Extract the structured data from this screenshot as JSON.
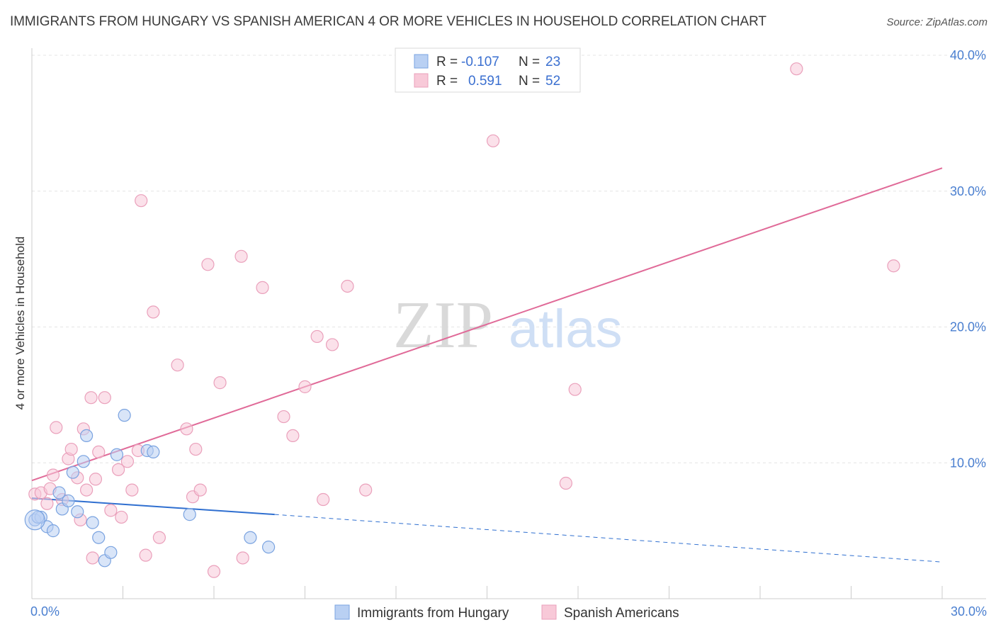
{
  "chart_data": {
    "type": "scatter",
    "title": "IMMIGRANTS FROM HUNGARY VS SPANISH AMERICAN 4 OR MORE VEHICLES IN HOUSEHOLD CORRELATION CHART",
    "source": "Source: ZipAtlas.com",
    "ylabel": "4 or more Vehicles in Household",
    "xlim": [
      0,
      30
    ],
    "ylim": [
      0,
      40
    ],
    "y_ticks": [
      "10.0%",
      "20.0%",
      "30.0%",
      "40.0%"
    ],
    "y_tick_values": [
      10,
      20,
      30,
      40
    ],
    "x_tick_labels": [
      "0.0%",
      "30.0%"
    ],
    "watermark": {
      "zip": "ZIP",
      "atlas": "atlas"
    },
    "legend": {
      "rows": [
        {
          "r_label": "R =",
          "r_value": "-0.107",
          "n_label": "N =",
          "n_value": "23"
        },
        {
          "r_label": "R =",
          "r_value": "0.591",
          "n_label": "N =",
          "n_value": "52"
        }
      ]
    },
    "series": [
      {
        "name": "Immigrants from Hungary",
        "color": "#7aa3e0",
        "fill": "#b9d0f3",
        "line_color": "#2f6fd0",
        "trend": {
          "x0": 0,
          "y0": 7.4,
          "x1": 8,
          "y1": 6.2,
          "dashed_to_x": 30,
          "dashed_to_y": 2.7
        },
        "points": [
          [
            0.1,
            5.8
          ],
          [
            0.3,
            6.0
          ],
          [
            0.5,
            5.3
          ],
          [
            0.7,
            5.0
          ],
          [
            0.9,
            7.8
          ],
          [
            1.0,
            6.6
          ],
          [
            1.2,
            7.2
          ],
          [
            1.35,
            9.3
          ],
          [
            1.5,
            6.4
          ],
          [
            1.7,
            10.1
          ],
          [
            1.8,
            12.0
          ],
          [
            2.0,
            5.6
          ],
          [
            2.2,
            4.5
          ],
          [
            2.4,
            2.8
          ],
          [
            2.6,
            3.4
          ],
          [
            2.8,
            10.6
          ],
          [
            3.05,
            13.5
          ],
          [
            3.8,
            10.9
          ],
          [
            4.0,
            10.8
          ],
          [
            5.2,
            6.2
          ],
          [
            7.2,
            4.5
          ],
          [
            7.8,
            3.8
          ],
          [
            0.2,
            6.0
          ]
        ]
      },
      {
        "name": "Spanish Americans",
        "color": "#eaa0bb",
        "fill": "#f8c9d8",
        "line_color": "#e06a98",
        "trend": {
          "x0": 0,
          "y0": 8.7,
          "x1": 30,
          "y1": 31.7
        },
        "points": [
          [
            0.1,
            7.7
          ],
          [
            0.3,
            7.8
          ],
          [
            0.5,
            7.0
          ],
          [
            0.6,
            8.1
          ],
          [
            0.7,
            9.1
          ],
          [
            0.8,
            12.6
          ],
          [
            1.0,
            7.3
          ],
          [
            1.2,
            10.3
          ],
          [
            1.3,
            11.0
          ],
          [
            1.5,
            8.9
          ],
          [
            1.6,
            5.8
          ],
          [
            1.7,
            12.5
          ],
          [
            1.8,
            8.0
          ],
          [
            1.95,
            14.8
          ],
          [
            2.1,
            8.8
          ],
          [
            2.2,
            10.8
          ],
          [
            2.4,
            14.8
          ],
          [
            2.6,
            6.5
          ],
          [
            2.85,
            9.5
          ],
          [
            2.95,
            6.0
          ],
          [
            3.15,
            10.1
          ],
          [
            3.3,
            8.0
          ],
          [
            3.5,
            10.9
          ],
          [
            3.6,
            29.3
          ],
          [
            4.0,
            21.1
          ],
          [
            4.2,
            4.5
          ],
          [
            4.8,
            17.2
          ],
          [
            5.1,
            12.5
          ],
          [
            5.3,
            7.5
          ],
          [
            5.4,
            11.0
          ],
          [
            5.55,
            8.0
          ],
          [
            5.8,
            24.6
          ],
          [
            6.0,
            2.0
          ],
          [
            6.2,
            15.9
          ],
          [
            6.9,
            25.2
          ],
          [
            7.6,
            22.9
          ],
          [
            8.3,
            13.4
          ],
          [
            8.6,
            12.0
          ],
          [
            9.0,
            15.6
          ],
          [
            9.4,
            19.3
          ],
          [
            9.6,
            7.3
          ],
          [
            9.9,
            18.7
          ],
          [
            10.4,
            23.0
          ],
          [
            11.0,
            8.0
          ],
          [
            15.2,
            33.7
          ],
          [
            17.6,
            8.5
          ],
          [
            17.9,
            15.4
          ],
          [
            25.2,
            39.0
          ],
          [
            28.4,
            24.5
          ],
          [
            3.75,
            3.2
          ],
          [
            2.0,
            3.0
          ],
          [
            6.95,
            3.0
          ]
        ]
      }
    ]
  }
}
